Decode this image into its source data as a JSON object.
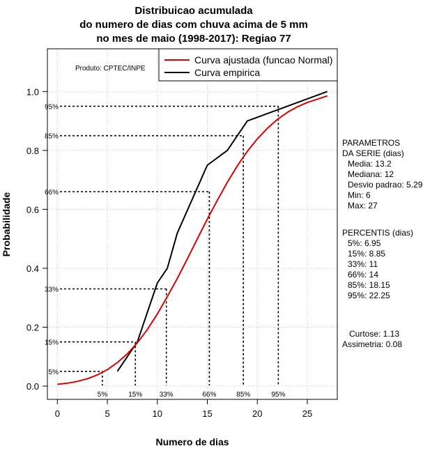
{
  "chart_data": {
    "type": "line",
    "title_lines": [
      "Distribuicao acumulada",
      "do numero de dias com chuva acima de 5 mm",
      "no mes de maio (1998-2017): Regiao 77"
    ],
    "xlabel": "Numero de dias",
    "ylabel": "Probabilidade",
    "xlim": [
      -1,
      28
    ],
    "ylim": [
      -0.045,
      1.145
    ],
    "x_ticks": [
      0,
      5,
      10,
      15,
      20,
      25
    ],
    "y_ticks": [
      0.0,
      0.2,
      0.4,
      0.6,
      0.8,
      1.0
    ],
    "x_tick_labels": [
      "0",
      "5",
      "10",
      "15",
      "20",
      "25"
    ],
    "y_tick_labels": [
      "0.0",
      "0.2",
      "0.4",
      "0.6",
      "0.8",
      "1.0"
    ],
    "grid": true,
    "credit": "Produto: CPTEC/INPE",
    "legend": {
      "position": "top-right",
      "entries": [
        {
          "label": "Curva ajustada (funcao Normal)",
          "color": "#dd0000"
        },
        {
          "label": "Curva empirica",
          "color": "#000000"
        }
      ]
    },
    "series": [
      {
        "name": "Curva empirica",
        "color": "#000000",
        "x": [
          6,
          8,
          9,
          10,
          11,
          12,
          15,
          17,
          19,
          27
        ],
        "y": [
          0.05,
          0.15,
          0.25,
          0.35,
          0.4,
          0.52,
          0.75,
          0.8,
          0.9,
          1.0
        ]
      },
      {
        "name": "Curva ajustada (funcao Normal)",
        "color": "#dd0000",
        "x": [
          0,
          1,
          2,
          3,
          4,
          5,
          6,
          7,
          8,
          9,
          10,
          11,
          12,
          13,
          14,
          15,
          16,
          17,
          18,
          19,
          20,
          21,
          22,
          23,
          24,
          25,
          26,
          27
        ],
        "y": [
          0.006,
          0.01,
          0.016,
          0.025,
          0.038,
          0.056,
          0.08,
          0.11,
          0.147,
          0.192,
          0.245,
          0.304,
          0.366,
          0.432,
          0.5,
          0.567,
          0.631,
          0.692,
          0.748,
          0.797,
          0.839,
          0.875,
          0.905,
          0.929,
          0.948,
          0.963,
          0.974,
          0.985
        ]
      }
    ],
    "percentile_lines": [
      {
        "label": "5%",
        "x": 4.5,
        "y": 0.05
      },
      {
        "label": "15%",
        "x": 7.8,
        "y": 0.15
      },
      {
        "label": "33%",
        "x": 10.9,
        "y": 0.33
      },
      {
        "label": "66%",
        "x": 15.2,
        "y": 0.66
      },
      {
        "label": "85%",
        "x": 18.6,
        "y": 0.85
      },
      {
        "label": "95%",
        "x": 22.1,
        "y": 0.95
      }
    ]
  },
  "parametros": {
    "heading_1": "PARAMETROS",
    "heading_2": "DA SERIE (dias)",
    "media": "Media: 13.2",
    "mediana": "Mediana: 12",
    "desvio": "Desvio padrao: 5.29",
    "min": "Min: 6",
    "max": "Max: 27"
  },
  "percentis": {
    "heading": "PERCENTIS (dias)",
    "items": [
      "5%: 6.95",
      "15%: 8.85",
      "33%: 11",
      "66%: 14",
      "85%: 18.15",
      "95%: 22.25"
    ]
  },
  "shape": {
    "curtose": "Curtose: 1.13",
    "assimetria": "Assimetria: 0.08"
  }
}
